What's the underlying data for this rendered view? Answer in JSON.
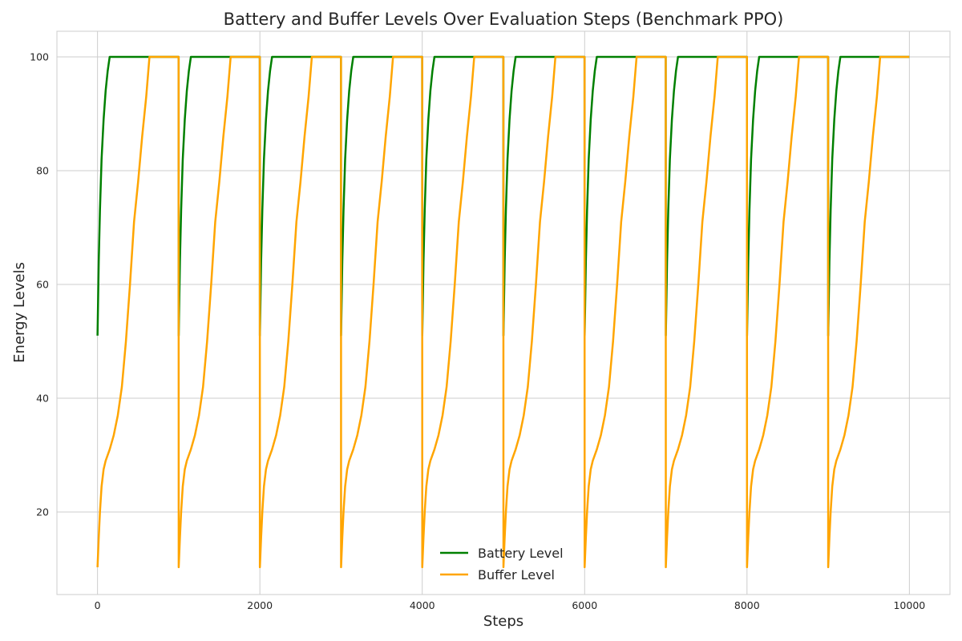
{
  "chart_data": {
    "type": "line",
    "title": "Battery and Buffer Levels Over Evaluation Steps (Benchmark PPO)",
    "xlabel": "Steps",
    "ylabel": "Energy Levels",
    "xlim": [
      -500,
      10500
    ],
    "ylim": [
      5.5,
      104.5
    ],
    "xticks": [
      0,
      2000,
      4000,
      6000,
      8000,
      10000
    ],
    "yticks": [
      20,
      40,
      60,
      80,
      100
    ],
    "grid": true,
    "legend_position": "lower center",
    "episode_length": 1000,
    "episodes": 10,
    "series": [
      {
        "name": "Battery Level",
        "color": "#008000",
        "episode_profile": {
          "steps": [
            0,
            15,
            30,
            50,
            75,
            100,
            125,
            150,
            999
          ],
          "values": [
            51,
            64,
            73,
            82,
            89,
            94,
            97.5,
            100,
            100
          ]
        }
      },
      {
        "name": "Buffer Level",
        "color": "#FFA500",
        "episode_profile": {
          "steps": [
            0,
            15,
            30,
            50,
            75,
            100,
            150,
            200,
            250,
            300,
            350,
            400,
            450,
            500,
            550,
            600,
            640,
            999
          ],
          "values": [
            10.3,
            15.5,
            20,
            24.5,
            27.5,
            29,
            31,
            33.5,
            37,
            42,
            50,
            60,
            71,
            78,
            86,
            93,
            100,
            100
          ]
        }
      }
    ]
  }
}
